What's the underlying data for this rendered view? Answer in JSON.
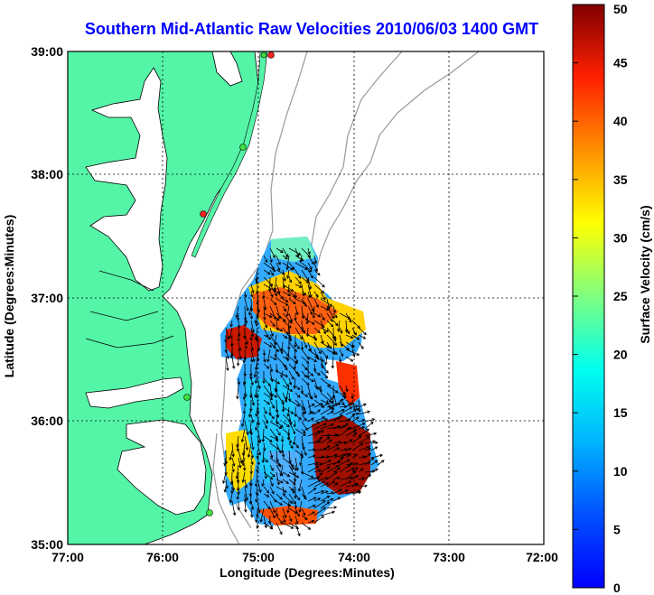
{
  "title": "Southern Mid-Atlantic Raw Velocities 2010/06/03 1400 GMT",
  "xlabel": "Longitude (Degrees:Minutes)",
  "ylabel": "Latitude (Degrees:Minutes)",
  "colorbar": {
    "label": "Surface Velocity (cm/s)",
    "range": [
      0,
      50
    ],
    "ticks": [
      "0",
      "5",
      "10",
      "15",
      "20",
      "25",
      "30",
      "35",
      "40",
      "45",
      "50"
    ]
  },
  "axes": {
    "lon_ticks": [
      "77:00",
      "76:00",
      "75:00",
      "74:00",
      "73:00",
      "72:00"
    ],
    "lat_ticks": [
      "39:00",
      "38:00",
      "37:00",
      "36:00",
      "35:00"
    ],
    "lon_range": [
      -77,
      -72
    ],
    "lat_range": [
      35,
      39
    ],
    "grid": "dotted"
  },
  "colors": {
    "land": "#55f5a8",
    "title": "#0000ff",
    "bathymetry": "#999999"
  }
}
